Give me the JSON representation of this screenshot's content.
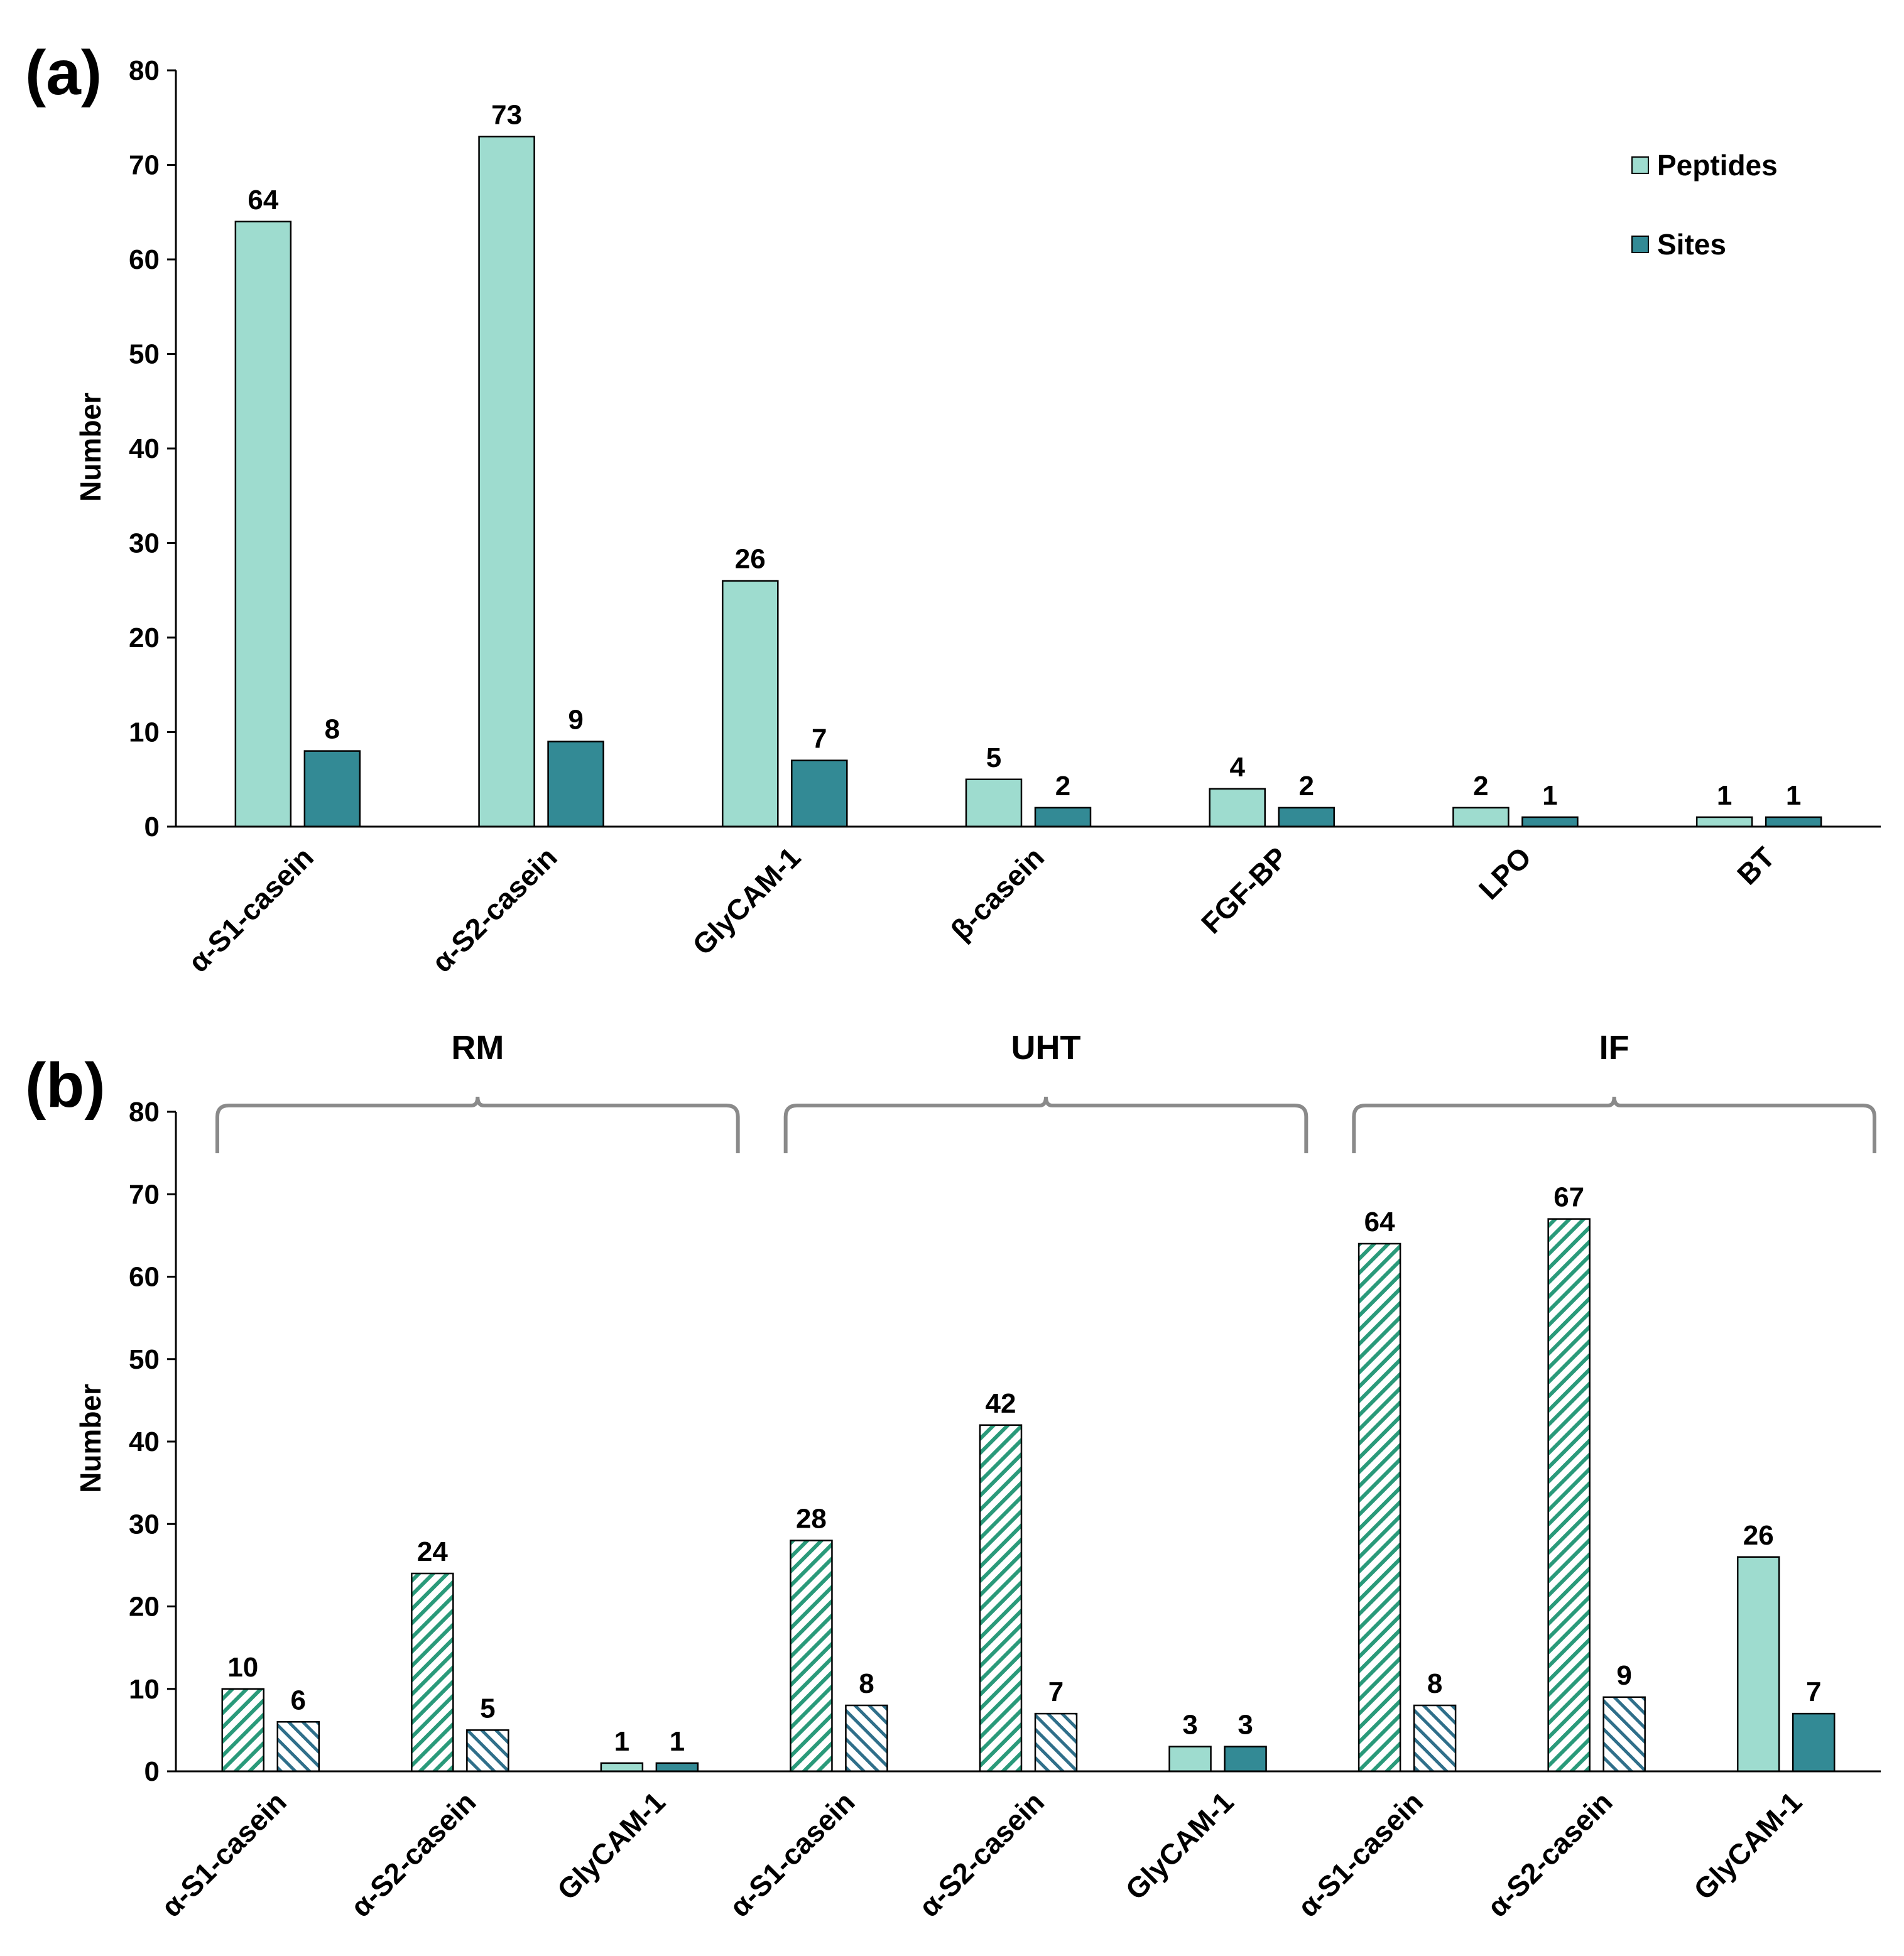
{
  "colors": {
    "peptides": "#9edccf",
    "sites": "#338a95",
    "hatch_peptides_line": "#2a9a7a",
    "hatch_sites_line": "#2f6f8a",
    "axis": "#000000",
    "bracket": "#8a8a8a"
  },
  "chart_data": [
    {
      "panel": "(a)",
      "type": "bar",
      "ylabel": "Number",
      "ylim": [
        0,
        80
      ],
      "yticks": [
        0,
        10,
        20,
        30,
        40,
        50,
        60,
        70,
        80
      ],
      "categories": [
        "α-S1-casein",
        "α-S2-casein",
        "GlyCAM-1",
        "β-casein",
        "FGF-BP",
        "LPO",
        "BT"
      ],
      "series": [
        {
          "name": "Peptides",
          "values": [
            64,
            73,
            26,
            5,
            4,
            2,
            1
          ]
        },
        {
          "name": "Sites",
          "values": [
            8,
            9,
            7,
            2,
            2,
            1,
            1
          ]
        }
      ],
      "legend": {
        "position": "top-right",
        "entries": [
          "Peptides",
          "Sites"
        ]
      }
    },
    {
      "panel": "(b)",
      "type": "bar",
      "ylabel": "Number",
      "ylim": [
        0,
        80
      ],
      "yticks": [
        0,
        10,
        20,
        30,
        40,
        50,
        60,
        70,
        80
      ],
      "groups": [
        "RM",
        "UHT",
        "IF"
      ],
      "categories": [
        "α-S1-casein",
        "α-S2-casein",
        "GlyCAM-1",
        "α-S1-casein",
        "α-S2-casein",
        "GlyCAM-1",
        "α-S1-casein",
        "α-S2-casein",
        "GlyCAM-1"
      ],
      "series": [
        {
          "name": "Peptides",
          "values": [
            10,
            24,
            1,
            28,
            42,
            3,
            64,
            67,
            26
          ]
        },
        {
          "name": "Sites",
          "values": [
            6,
            5,
            1,
            8,
            7,
            3,
            8,
            9,
            7
          ]
        }
      ],
      "hatched": [
        true,
        true,
        false,
        true,
        true,
        false,
        true,
        true,
        false
      ]
    }
  ]
}
